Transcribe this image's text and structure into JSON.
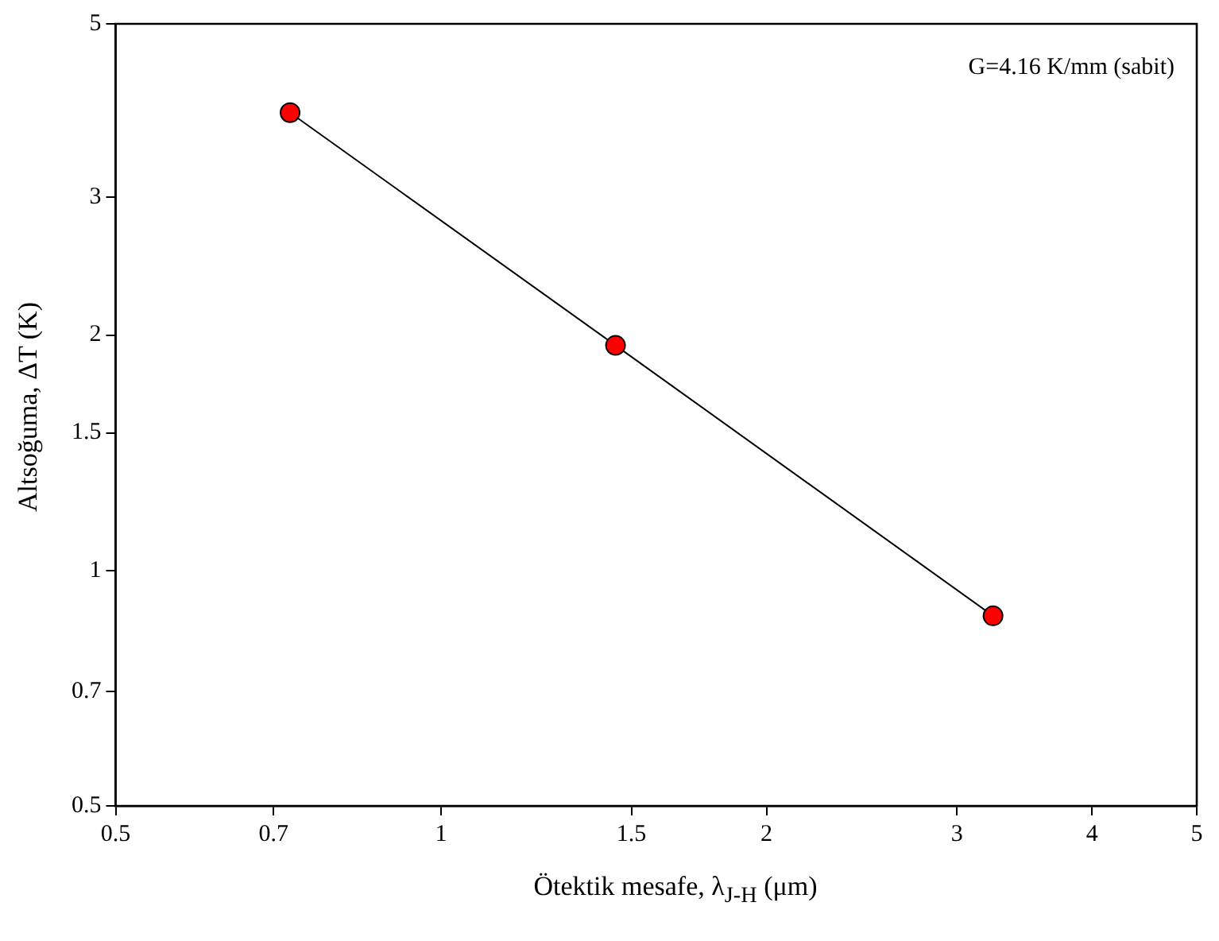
{
  "chart_data": {
    "type": "line",
    "xlabel": "Ötektik mesafe, λ$_{J-H}$ (μm)",
    "ylabel": "Altsoğuma, ΔT (K)",
    "log": "xy",
    "x": [
      0.725,
      1.45,
      3.24
    ],
    "series": [
      {
        "color": "#ff0000",
        "values": [
          3.85,
          1.94,
          0.875
        ]
      }
    ],
    "xlim": [
      0.5,
      5
    ],
    "xticks": [
      0.5,
      0.7,
      1,
      1.5,
      2,
      3,
      4,
      5
    ],
    "ylim": [
      0.5,
      5
    ],
    "yticks": [
      0.5,
      0.7,
      1,
      1.5,
      2,
      3,
      5
    ],
    "marker": "circle",
    "line_style": "solid",
    "legend": false,
    "annotations": [
      "G=4.16 K/mm (sabit)"
    ]
  }
}
